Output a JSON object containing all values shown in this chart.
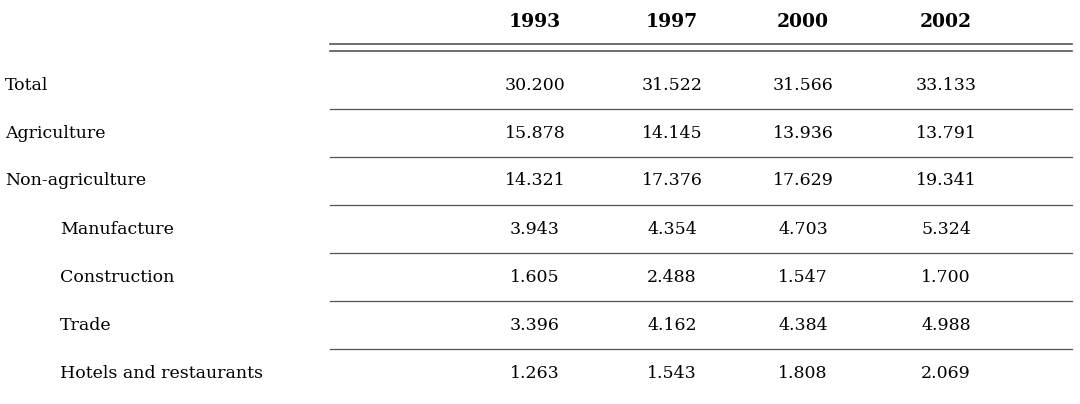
{
  "columns": [
    "1993",
    "1997",
    "2000",
    "2002"
  ],
  "rows": [
    {
      "label": "Total",
      "indent": false,
      "values": [
        "30.200",
        "31.522",
        "31.566",
        "33.133"
      ],
      "bottom_line": true
    },
    {
      "label": "Agriculture",
      "indent": false,
      "values": [
        "15.878",
        "14.145",
        "13.936",
        "13.791"
      ],
      "bottom_line": true
    },
    {
      "label": "Non-agriculture",
      "indent": false,
      "values": [
        "14.321",
        "17.376",
        "17.629",
        "19.341"
      ],
      "bottom_line": true
    },
    {
      "label": "Manufacture",
      "indent": true,
      "values": [
        "3.943",
        "4.354",
        "4.703",
        "5.324"
      ],
      "bottom_line": true
    },
    {
      "label": "Construction",
      "indent": true,
      "values": [
        "1.605",
        "2.488",
        "1.547",
        "1.700"
      ],
      "bottom_line": true
    },
    {
      "label": "Trade",
      "indent": true,
      "values": [
        "3.396",
        "4.162",
        "4.384",
        "4.988"
      ],
      "bottom_line": true
    },
    {
      "label": "Hotels and restaurants",
      "indent": true,
      "values": [
        "1.263",
        "1.543",
        "1.808",
        "2.069"
      ],
      "bottom_line": false
    }
  ],
  "bg_color": "#ffffff",
  "text_color": "#000000",
  "line_color": "#555555",
  "font_size": 12.5,
  "header_font_size": 13.5,
  "fig_width": 10.8,
  "fig_height": 4.04,
  "dpi": 100
}
